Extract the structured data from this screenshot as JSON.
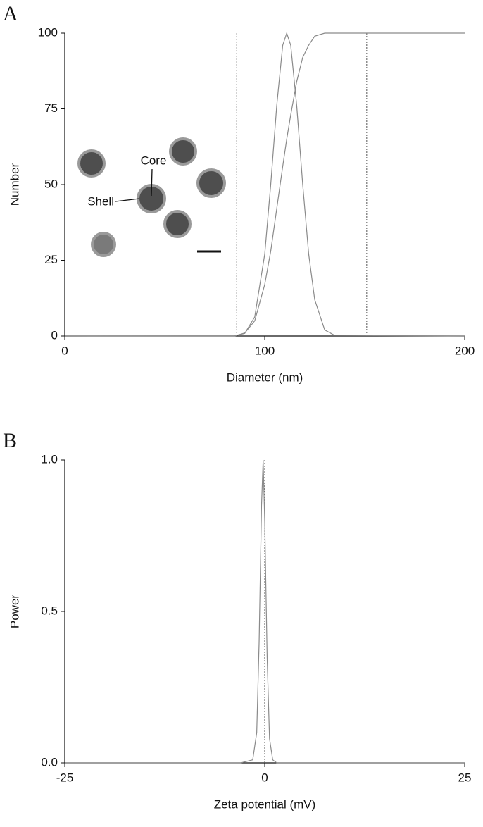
{
  "chart_data": [
    {
      "type": "line",
      "panel_label": "A",
      "xlabel": "Diameter (nm)",
      "ylabel": "Number",
      "x": [
        0,
        85,
        90,
        95,
        100,
        103,
        106,
        109,
        111,
        113,
        116,
        119,
        122,
        125,
        130,
        135,
        200
      ],
      "series": [
        {
          "color": "#8a8a8a",
          "values": [
            0,
            0.07,
            0.85,
            6.3,
            27,
            50,
            76,
            96,
            100,
            96,
            76,
            50,
            27,
            12,
            2,
            0.2,
            0
          ]
        },
        {
          "color": "#8a8a8a",
          "values": [
            0,
            0,
            1,
            5,
            17,
            28,
            42,
            56,
            65,
            73,
            84,
            92,
            96,
            99,
            100,
            100,
            100
          ]
        }
      ],
      "vlines": [
        86,
        151
      ],
      "annotations": [
        "Core",
        "Shell"
      ],
      "xlim": [
        0,
        200
      ],
      "xticks": [
        0,
        100,
        200
      ],
      "ylim": [
        0,
        100
      ],
      "yticks": [
        0,
        25,
        50,
        75,
        100
      ]
    },
    {
      "type": "line",
      "panel_label": "B",
      "xlabel": "Zeta potential (mV)",
      "ylabel": "Power",
      "x": [
        -25,
        -12,
        -3,
        -1.5,
        -1,
        -0.7,
        -0.4,
        -0.2,
        0,
        0.3,
        0.6,
        1,
        1.5,
        12,
        25
      ],
      "series": [
        {
          "color": "#8a8a8a",
          "values": [
            0,
            0,
            0,
            0.01,
            0.1,
            0.4,
            0.85,
            1.0,
            0.8,
            0.35,
            0.08,
            0.01,
            0,
            0,
            0
          ]
        }
      ],
      "vlines": [
        0
      ],
      "xlim": [
        -25,
        25
      ],
      "xticks": [
        -25,
        0,
        25
      ],
      "ylim": [
        0,
        1
      ],
      "yticks": [
        {
          "value": 0,
          "label": "0.0"
        },
        {
          "value": 0.5,
          "label": "0.5"
        },
        {
          "value": 1,
          "label": "1.0"
        }
      ]
    }
  ]
}
